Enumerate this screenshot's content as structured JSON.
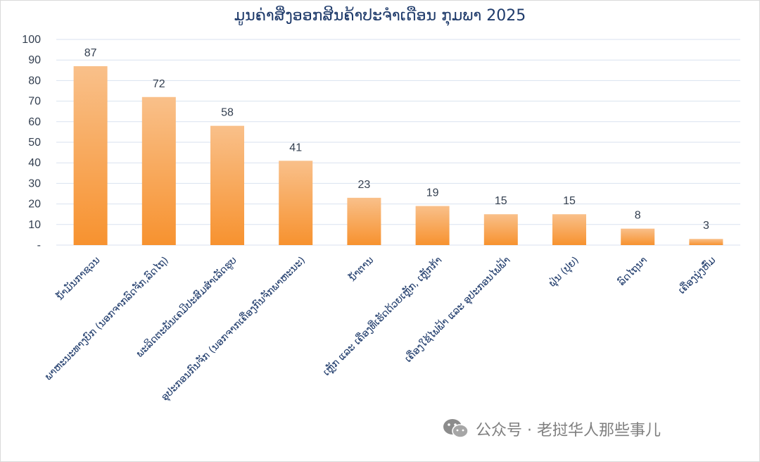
{
  "chart_data": {
    "type": "bar",
    "title": "ມູນຄ່າສິ່ງອອກສິນຄ້າປະຈຳເດືອນ ກຸມພາ 2025",
    "xlabel": "",
    "ylabel": "",
    "ylim": [
      0,
      100
    ],
    "yticks": [
      0,
      10,
      20,
      30,
      40,
      50,
      60,
      70,
      80,
      90,
      100
    ],
    "ytick_labels": [
      "-",
      "10",
      "20",
      "30",
      "40",
      "50",
      "60",
      "70",
      "80",
      "90",
      "100"
    ],
    "grid": true,
    "legend": "none",
    "categories": [
      "ນ້ຳມັນກາຊວນ",
      "ພາຫະນະທາງບົກ (ນອກຈາກລົດຈັກ,ລົດໄຖ)",
      "ພະລິດຕະພັນເຄມີປະສົມສຳເລັດຮູບ",
      "ອຸປະກອນກົນຈັກ (ນອກຈາກເຄື່ອງກົນຈັກພາຫະນະ)",
      "ນ້ຳຕານ",
      "ເຫຼັກ ແລະ ເຄື່ອງທີ່ເຮັດດ້ວຍເຫຼັກ, ເຫຼັກກ້າ",
      "ເຄື່ອງໃຊ້ໄຟຟ້າ ແລະ ອຸປະກອນໄຟຟ້າ",
      "ຝຸ່ນ (ປຸຍ)",
      "ລົດໄຖນາ",
      "ເຄື່ອງນຸ່ງຫົ່ມ"
    ],
    "values": [
      87,
      72,
      58,
      41,
      23,
      19,
      15,
      15,
      8,
      3
    ],
    "data_labels": [
      "87",
      "72",
      "58",
      "41",
      "23",
      "19",
      "15",
      "15",
      "8",
      "3"
    ],
    "colors": {
      "bar_top": "#f9c08a",
      "bar_bottom": "#f7922f",
      "grid": "#d9e2ef",
      "text": "#1f3b6b"
    }
  },
  "watermark": {
    "icon": "wechat-icon",
    "text": "公众号 · 老挝华人那些事儿"
  }
}
